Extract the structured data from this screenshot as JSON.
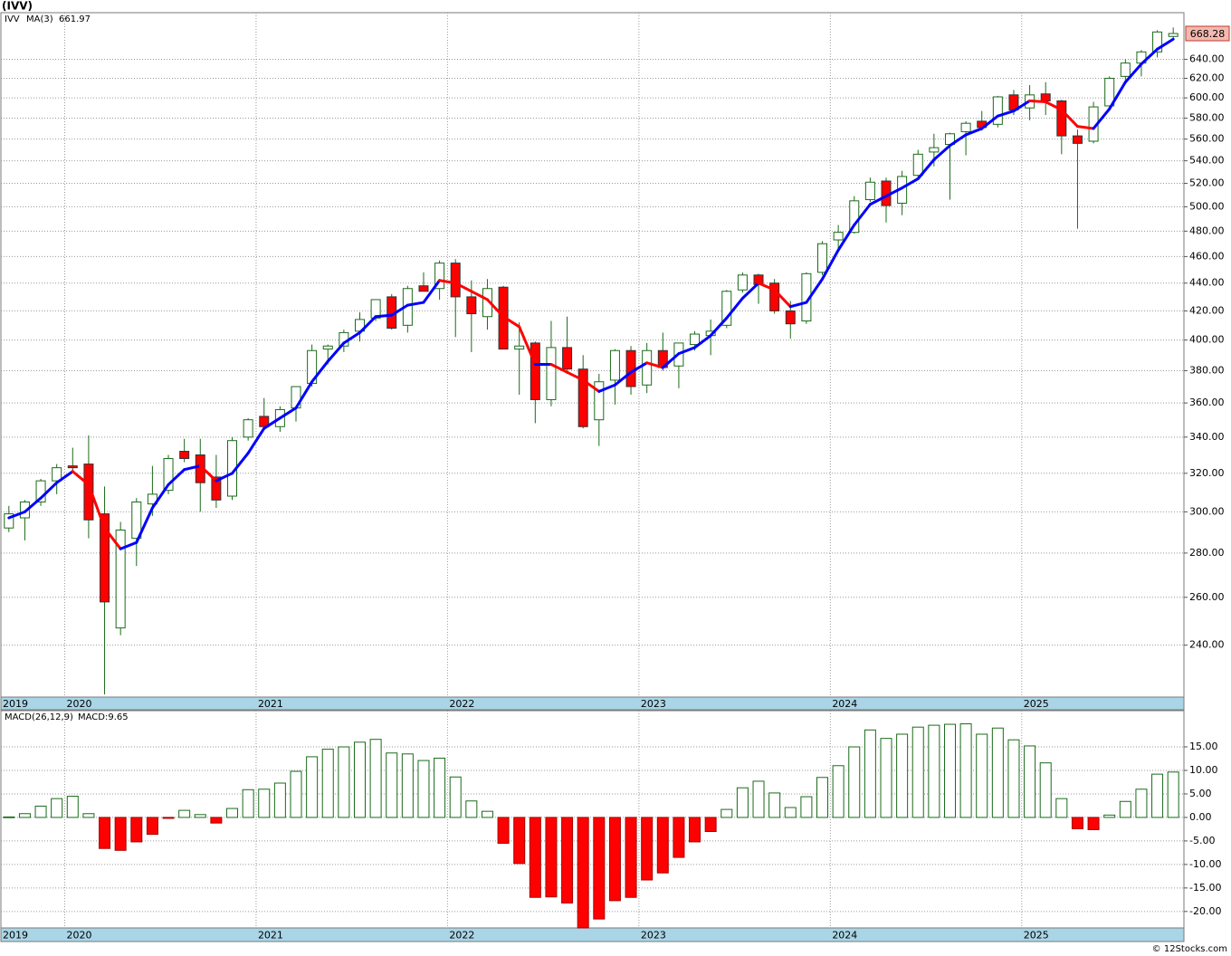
{
  "title": "(IVV)",
  "footer": "© 12Stocks.com",
  "chart_data": [
    {
      "type": "candlestick",
      "name": "IVV",
      "color": "#1a6b1a",
      "up_color": "#ffffff",
      "down_color": "#ff0000",
      "categories": [
        "2019",
        null,
        null,
        null,
        "2020",
        null,
        null,
        null,
        null,
        null,
        null,
        null,
        null,
        null,
        null,
        null,
        "2021",
        null,
        null,
        null,
        null,
        null,
        null,
        null,
        null,
        null,
        null,
        null,
        "2022",
        null,
        null,
        null,
        null,
        null,
        null,
        null,
        null,
        null,
        null,
        null,
        "2023",
        null,
        null,
        null,
        null,
        null,
        null,
        null,
        null,
        null,
        null,
        null,
        "2024",
        null,
        null,
        null,
        null,
        null,
        null,
        null,
        null,
        null,
        null,
        null,
        "2025",
        null,
        null,
        null,
        null,
        null,
        null,
        null,
        null,
        null
      ],
      "open": [
        292,
        297,
        305,
        316,
        324,
        325,
        299,
        247,
        287,
        304,
        311,
        332,
        330,
        318,
        308,
        340,
        352,
        346,
        357,
        372,
        394,
        396,
        406,
        415,
        430,
        410,
        438,
        436,
        455,
        430,
        416,
        437,
        394,
        398,
        362,
        395,
        381,
        350,
        374,
        393,
        371,
        393,
        383,
        397,
        403,
        410,
        435,
        446,
        440,
        420,
        413,
        448,
        473,
        479,
        506,
        522,
        503,
        527,
        548,
        555,
        567,
        577,
        574,
        603,
        590,
        604,
        597,
        563,
        558,
        592,
        622,
        636,
        648,
        665
      ],
      "high": [
        303,
        306,
        317,
        325,
        334,
        341,
        313,
        295,
        307,
        324,
        330,
        339,
        339,
        330,
        340,
        351,
        363,
        358,
        370,
        397,
        397,
        407,
        419,
        428,
        432,
        438,
        448,
        457,
        458,
        442,
        443,
        438,
        412,
        399,
        413,
        416,
        390,
        378,
        394,
        396,
        398,
        405,
        398,
        406,
        414,
        435,
        448,
        447,
        443,
        427,
        448,
        472,
        485,
        509,
        525,
        525,
        531,
        550,
        565,
        566,
        577,
        587,
        602,
        608,
        613,
        616,
        598,
        569,
        596,
        622,
        640,
        650,
        672,
        675
      ],
      "low": [
        290,
        286,
        303,
        309,
        321,
        287,
        221,
        244,
        274,
        298,
        309,
        326,
        300,
        302,
        306,
        338,
        346,
        343,
        349,
        370,
        384,
        392,
        399,
        413,
        407,
        405,
        434,
        428,
        402,
        392,
        407,
        394,
        365,
        348,
        358,
        378,
        345,
        335,
        359,
        365,
        366,
        380,
        369,
        393,
        390,
        408,
        433,
        425,
        418,
        401,
        411,
        446,
        465,
        478,
        504,
        487,
        493,
        524,
        535,
        506,
        545,
        568,
        571,
        583,
        578,
        583,
        546,
        482,
        556,
        590,
        618,
        622,
        642,
        663
      ],
      "close": [
        299,
        305,
        316,
        323,
        323,
        296,
        258,
        291,
        305,
        309,
        328,
        328,
        315,
        306,
        338,
        350,
        346,
        356,
        370,
        393,
        396,
        405,
        414,
        428,
        408,
        436,
        434,
        455,
        430,
        418,
        436,
        394,
        396,
        362,
        395,
        381,
        346,
        373,
        393,
        370,
        393,
        382,
        398,
        404,
        406,
        434,
        446,
        439,
        420,
        411,
        447,
        470,
        479,
        505,
        521,
        501,
        526,
        546,
        552,
        565,
        575,
        571,
        601,
        588,
        603,
        597,
        563,
        556,
        591,
        620,
        636,
        648,
        670,
        668.28
      ],
      "ma": {
        "name": "MA(3)",
        "up_color": "#0000ff",
        "down_color": "#ff0000",
        "values": [
          297,
          300,
          307,
          315,
          321,
          314,
          292,
          282,
          285,
          302,
          314,
          322,
          324,
          316,
          320,
          331,
          345,
          351,
          357,
          373,
          386,
          398,
          405,
          416,
          417,
          424,
          426,
          442,
          440,
          434,
          428,
          416,
          409,
          384,
          384,
          379,
          374,
          367,
          371,
          379,
          385,
          382,
          391,
          395,
          403,
          415,
          429,
          440,
          435,
          423,
          426,
          443,
          465,
          485,
          502,
          509,
          516,
          524,
          541,
          554,
          564,
          570,
          582,
          587,
          597,
          596,
          588,
          572,
          570,
          589,
          616,
          635,
          651,
          661.97
        ]
      },
      "log_scale": true,
      "grid": true,
      "ylim": [
        220,
        692
      ],
      "yticks": [
        {
          "value": 240,
          "label": "240.00"
        },
        {
          "value": 260,
          "label": "260.00"
        },
        {
          "value": 280,
          "label": "280.00"
        },
        {
          "value": 300,
          "label": "300.00"
        },
        {
          "value": 320,
          "label": "320.00"
        },
        {
          "value": 340,
          "label": "340.00"
        },
        {
          "value": 360,
          "label": "360.00"
        },
        {
          "value": 380,
          "label": "380.00"
        },
        {
          "value": 400,
          "label": "400.00"
        },
        {
          "value": 420,
          "label": "420.00"
        },
        {
          "value": 440,
          "label": "440.00"
        },
        {
          "value": 460,
          "label": "460.00"
        },
        {
          "value": 480,
          "label": "480.00"
        },
        {
          "value": 500,
          "label": "500.00"
        },
        {
          "value": 520,
          "label": "520.00"
        },
        {
          "value": 540,
          "label": "540.00"
        },
        {
          "value": 560,
          "label": "560.00"
        },
        {
          "value": 580,
          "label": "580.00"
        },
        {
          "value": 600,
          "label": "600.00"
        },
        {
          "value": 620,
          "label": "620.00"
        },
        {
          "value": 640,
          "label": "640.00"
        }
      ]
    },
    {
      "type": "bar",
      "title": "MACD(26,12,9)",
      "categories": [
        "2019",
        null,
        null,
        null,
        "2020",
        null,
        null,
        null,
        null,
        null,
        null,
        null,
        null,
        null,
        null,
        null,
        "2021",
        null,
        null,
        null,
        null,
        null,
        null,
        null,
        null,
        null,
        null,
        null,
        "2022",
        null,
        null,
        null,
        null,
        null,
        null,
        null,
        null,
        null,
        null,
        null,
        "2023",
        null,
        null,
        null,
        null,
        null,
        null,
        null,
        null,
        null,
        null,
        null,
        "2024",
        null,
        null,
        null,
        null,
        null,
        null,
        null,
        null,
        null,
        null,
        null,
        "2025",
        null,
        null,
        null,
        null,
        null,
        null,
        null,
        null,
        null
      ],
      "series": [
        {
          "name": "MACD:",
          "color": "#0000cc",
          "up_color": "#ffffff",
          "down_color": "#ff0000",
          "values": [
            0.1,
            0.8,
            2.4,
            4.0,
            4.5,
            0.8,
            -6.6,
            -7.0,
            -5.2,
            -3.6,
            -0.2,
            1.5,
            0.6,
            -1.2,
            1.9,
            5.9,
            6.0,
            7.3,
            9.8,
            12.9,
            14.5,
            15.0,
            16.0,
            16.6,
            13.7,
            13.5,
            12.1,
            12.6,
            8.6,
            3.5,
            1.3,
            -5.5,
            -9.8,
            -17.0,
            -16.9,
            -18.2,
            -23.5,
            -21.6,
            -17.7,
            -17.0,
            -13.3,
            -11.8,
            -8.5,
            -5.2,
            -3.0,
            1.7,
            6.3,
            7.7,
            5.2,
            2.1,
            4.4,
            8.5,
            11.0,
            15.0,
            18.6,
            16.8,
            17.7,
            19.2,
            19.6,
            19.8,
            19.9,
            17.7,
            19.0,
            16.5,
            15.2,
            11.6,
            4.0,
            -2.4,
            -2.6,
            0.5,
            3.4,
            6.0,
            9.2,
            9.65
          ]
        }
      ],
      "grid": true,
      "ylim": [
        -23.5,
        22.7
      ],
      "yticks": [
        {
          "value": 15,
          "label": "15.00"
        },
        {
          "value": 10,
          "label": "10.00"
        },
        {
          "value": 5,
          "label": "5.00"
        },
        {
          "value": 0,
          "label": "0.00"
        },
        {
          "value": -5,
          "label": "-5.00"
        },
        {
          "value": -10,
          "label": "-10.00"
        },
        {
          "value": -15,
          "label": "-15.00"
        },
        {
          "value": -20,
          "label": "-20.00"
        }
      ]
    }
  ]
}
